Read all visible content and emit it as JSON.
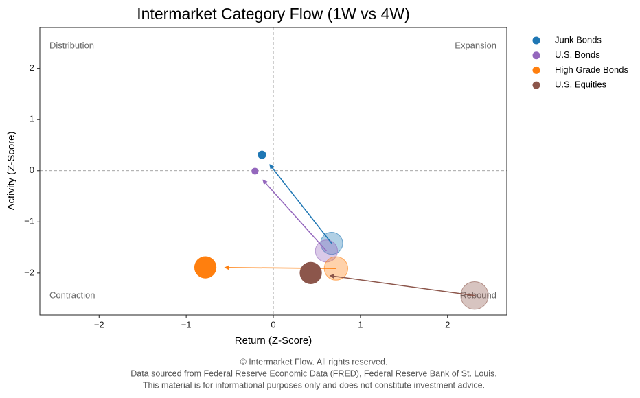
{
  "chart_data": {
    "type": "scatter",
    "title": "Intermarket Category Flow (1W vs 4W)",
    "x_label": "Return (Z-Score)",
    "y_label": "Activity (Z-Score)",
    "xlim": [
      -2.68,
      2.68
    ],
    "ylim": [
      -2.82,
      2.8
    ],
    "xticks": [
      {
        "value": -2,
        "label": "−2"
      },
      {
        "value": -1,
        "label": "−1"
      },
      0,
      1,
      2
    ],
    "yticks": [
      {
        "value": -2,
        "label": "−2"
      },
      {
        "value": -1,
        "label": "−1"
      },
      0,
      1,
      2
    ],
    "ref_lines": {
      "x": 0,
      "y": 0
    },
    "quadrant_labels": [
      "Distribution",
      "Expansion",
      "Contraction",
      "Rebound"
    ],
    "legend_position": "outside upper right",
    "series": [
      {
        "name": "Junk Bonds",
        "color": "#1f77b4",
        "x": [
          0.67,
          -0.13
        ],
        "y": [
          -1.42,
          0.31
        ],
        "sizes": [
          530,
          75
        ]
      },
      {
        "name": "U.S. Bonds",
        "color": "#9467bd",
        "x": [
          0.61,
          -0.21
        ],
        "y": [
          -1.57,
          -0.01
        ],
        "sizes": [
          530,
          52
        ]
      },
      {
        "name": "High Grade Bonds",
        "color": "#ff7f0e",
        "x": [
          0.72,
          -0.78
        ],
        "y": [
          -1.91,
          -1.89
        ],
        "sizes": [
          600,
          530
        ]
      },
      {
        "name": "U.S. Equities",
        "color": "#8c564b",
        "x": [
          2.31,
          0.43
        ],
        "y": [
          -2.44,
          -2.0
        ],
        "sizes": [
          830,
          530
        ]
      }
    ],
    "footer": [
      "© Intermarket Flow. All rights reserved.",
      "Data sourced from Federal Reserve Economic Data (FRED), Federal Reserve Bank of St. Louis.",
      "This material is for informational purposes only and does not constitute investment advice."
    ]
  }
}
